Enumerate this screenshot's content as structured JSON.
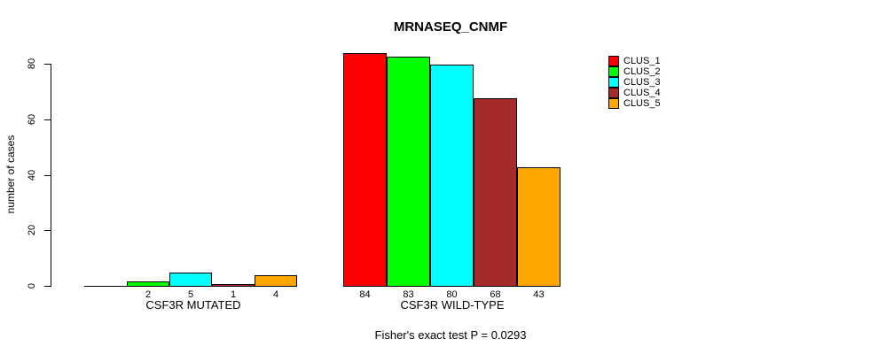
{
  "chart_data": {
    "type": "bar",
    "title": "MRNASEQ_CNMF",
    "ylabel": "number of cases",
    "ylim": [
      0,
      84
    ],
    "yticks": [
      0,
      20,
      40,
      60,
      80
    ],
    "grid": false,
    "legend_position": "right",
    "categories": [
      "CSF3R MUTATED",
      "CSF3R WILD-TYPE"
    ],
    "series": [
      {
        "name": "CLUS_1",
        "color": "#FF0000",
        "values": [
          0,
          84
        ]
      },
      {
        "name": "CLUS_2",
        "color": "#00FF00",
        "values": [
          2,
          83
        ]
      },
      {
        "name": "CLUS_3",
        "color": "#00FFFF",
        "values": [
          5,
          80
        ]
      },
      {
        "name": "CLUS_4",
        "color": "#A52A2A",
        "values": [
          1,
          68
        ]
      },
      {
        "name": "CLUS_5",
        "color": "#FFA500",
        "values": [
          4,
          43
        ]
      }
    ],
    "groups": [
      {
        "name": "CSF3R MUTATED",
        "values": [
          0,
          2,
          5,
          1,
          4
        ],
        "value_labels": [
          "",
          "2",
          "5",
          "1",
          "4"
        ]
      },
      {
        "name": "CSF3R WILD-TYPE",
        "values": [
          84,
          83,
          80,
          68,
          43
        ],
        "value_labels": [
          "84",
          "83",
          "80",
          "68",
          "43"
        ]
      }
    ],
    "annotation": "Fisher's exact test P = 0.0293"
  },
  "colors": {
    "background": "#FFFFFF",
    "axis": "#000000",
    "text": "#000000"
  }
}
